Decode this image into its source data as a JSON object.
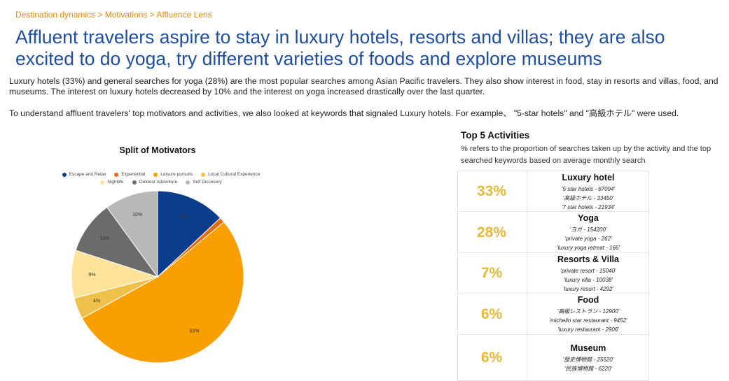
{
  "breadcrumb": "Destination dynamics > Motivations > Affluence Lens",
  "headline": "Affluent travelers aspire to stay in luxury hotels, resorts and villas; they are also excited to do yoga, try different varieties of foods and explore museums",
  "intro": "Luxury hotels (33%) and general searches for yoga (28%) are the most popular searches among Asian Pacific travelers. They also show interest in food, stay in resorts and villas, food, and museums. The interest on luxury hotels decreased by 10% and the interest on yoga increased drastically over the last quarter.",
  "method": "To understand affluent travelers' top motivators and activities, we also looked at keywords that signaled Luxury hotels. For example、 \"5-star hotels\" and \"高級ホテル\" were used.",
  "chart_data": {
    "type": "pie",
    "title": "Split of Motivators",
    "legend_position": "top",
    "slices": [
      {
        "name": "Escape and Relax",
        "value": 13,
        "label": "13%",
        "color": "#0c3d8c"
      },
      {
        "name": "Experiential",
        "value": 1,
        "label": "",
        "color": "#e86a10"
      },
      {
        "name": "Leisure pursuits",
        "value": 53,
        "label": "53%",
        "color": "#f9a000"
      },
      {
        "name": "Local Cultural Experience",
        "value": 4,
        "label": "4%",
        "color": "#f0c14a"
      },
      {
        "name": "Nightlife",
        "value": 9,
        "label": "9%",
        "color": "#fde49a"
      },
      {
        "name": "Outdoor Adventure",
        "value": 10,
        "label": "10%",
        "color": "#6b6b6b"
      },
      {
        "name": "Self Discovery",
        "value": 10,
        "label": "10%",
        "color": "#b8b8b8"
      }
    ]
  },
  "activities": {
    "title": "Top 5 Activities",
    "subtitle": "% refers to the proportion of searches taken up by the activity and the top searched keywords based on average monthly search",
    "items": [
      {
        "pct": "33%",
        "name": "Luxury hotel",
        "keywords": [
          "'5 star hotels - 67094'",
          "'高級ホテル - 33450'",
          "'7 star hotels - 21934'"
        ]
      },
      {
        "pct": "28%",
        "name": "Yoga",
        "keywords": [
          "'ヨガ - 154200'",
          "'private yoga - 262'",
          "'luxury yoga retreat - 166'"
        ]
      },
      {
        "pct": "7%",
        "name": "Resorts & Villa",
        "keywords": [
          "'private resort - 15040'",
          "'luxury villa - 10038'",
          "'luxury resort - 4292'"
        ]
      },
      {
        "pct": "6%",
        "name": "Food",
        "keywords": [
          "'高級レストラン - 12900'",
          "'michelin star restaurant - 9452'",
          "'luxury restaurant - 2906'"
        ]
      },
      {
        "pct": "6%",
        "name": "Museum",
        "keywords": [
          "'歴史博物館 - 25520'",
          "'民族博物館 - 6220'"
        ]
      }
    ]
  }
}
